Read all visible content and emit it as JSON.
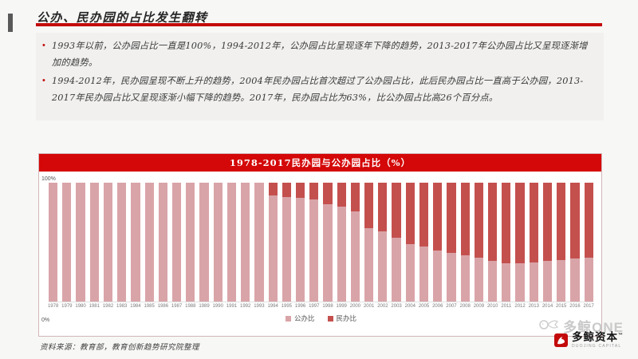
{
  "slide": {
    "title": "公办、民办园的占比发生翻转",
    "bullet_marker": "•",
    "bullets": [
      "1993年以前，公办园占比一直是100%，1994-2012年，公办园占比呈现逐年下降的趋势，2013-2017年公办园占比又呈现逐渐增加的趋势。",
      "1994-2012年，民办园呈现不断上升的趋势，2004年民办园占比首次超过了公办园占比，此后民办园占比一直高于公办园，2013-2017年民办园占比又呈现逐渐小幅下降的趋势。2017年，民办园占比为63%，比公办园占比高26个百分点。"
    ],
    "source": "资料来源：教育部，教育创新趋势研究院整理"
  },
  "chart_data": {
    "type": "bar",
    "stacked": true,
    "title": "1978-2017民办园与公办园占比（%）",
    "categories": [
      "1978",
      "1979",
      "1980",
      "1981",
      "1982",
      "1983",
      "1984",
      "1985",
      "1986",
      "1987",
      "1988",
      "1989",
      "1990",
      "1991",
      "1992",
      "1993",
      "1994",
      "1995",
      "1996",
      "1997",
      "1998",
      "1999",
      "2000",
      "2001",
      "2002",
      "2003",
      "2004",
      "2005",
      "2006",
      "2007",
      "2008",
      "2009",
      "2010",
      "2011",
      "2012",
      "2013",
      "2014",
      "2015",
      "2016",
      "2017"
    ],
    "series": [
      {
        "name": "公办比",
        "color": "#d9a4a8",
        "values": [
          100,
          100,
          100,
          100,
          100,
          100,
          100,
          100,
          100,
          100,
          100,
          100,
          100,
          100,
          100,
          100,
          89,
          88,
          87,
          86,
          82,
          80,
          76,
          62,
          59,
          54,
          48,
          46,
          43,
          41,
          39,
          37,
          34,
          32,
          32,
          33,
          34,
          35,
          36,
          37
        ]
      },
      {
        "name": "民办比",
        "color": "#c4504e",
        "values": [
          0,
          0,
          0,
          0,
          0,
          0,
          0,
          0,
          0,
          0,
          0,
          0,
          0,
          0,
          0,
          0,
          11,
          12,
          13,
          14,
          18,
          20,
          24,
          38,
          41,
          46,
          52,
          54,
          57,
          59,
          61,
          63,
          66,
          68,
          68,
          67,
          66,
          65,
          64,
          63
        ]
      }
    ],
    "ylim": [
      0,
      100
    ],
    "y_ticks": [
      "100%",
      "0%"
    ],
    "grid": false,
    "legend_position": "bottom"
  },
  "branding": {
    "watermark_text": "多鲸ONE",
    "logo_name": "多鲸资本",
    "logo_tm": "™",
    "logo_subtext": "DUOJING CAPITAL"
  },
  "colors": {
    "accent_red": "#c30b0b",
    "banner_red": "#d40808",
    "public_bar": "#d9a4a8",
    "private_bar": "#c4504e",
    "title_text": "#262626",
    "body_text": "#3a3a3a"
  }
}
